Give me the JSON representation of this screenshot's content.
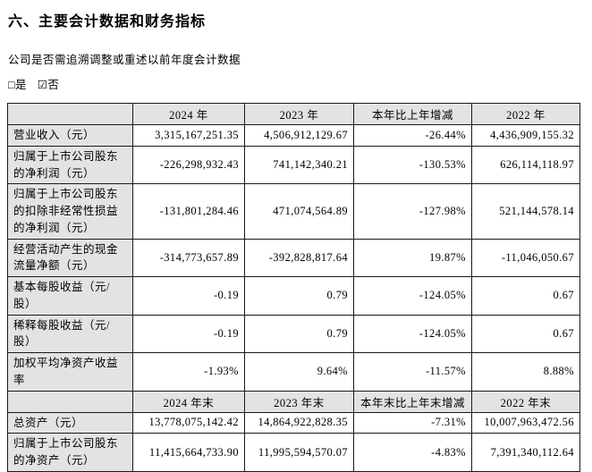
{
  "page": {
    "title": "六、主要会计数据和财务指标",
    "question": "公司是否需追溯调整或重述以前年度会计数据",
    "checkbox_yes": "□是",
    "checkbox_no": "☑否"
  },
  "colors": {
    "header_fill": "#e3e3e3",
    "border": "#1a1a1a",
    "text": "#000000",
    "background": "#ffffff"
  },
  "table": {
    "sections": [
      {
        "header": [
          "",
          "2024 年",
          "2023 年",
          "本年比上年增减",
          "2022 年"
        ],
        "rows": [
          {
            "label": "营业收入（元）",
            "values": [
              "3,315,167,251.35",
              "4,506,912,129.67",
              "-26.44%",
              "4,436,909,155.32"
            ]
          },
          {
            "label": "归属于上市公司股东的净利润（元）",
            "values": [
              "-226,298,932.43",
              "741,142,340.21",
              "-130.53%",
              "626,114,118.97"
            ]
          },
          {
            "label": "归属于上市公司股东的扣除非经常性损益的净利润（元）",
            "values": [
              "-131,801,284.46",
              "471,074,564.89",
              "-127.98%",
              "521,144,578.14"
            ]
          },
          {
            "label": "经营活动产生的现金流量净额（元）",
            "values": [
              "-314,773,657.89",
              "-392,828,817.64",
              "19.87%",
              "-11,046,050.67"
            ]
          },
          {
            "label": "基本每股收益（元/股）",
            "values": [
              "-0.19",
              "0.79",
              "-124.05%",
              "0.67"
            ]
          },
          {
            "label": "稀释每股收益（元/股）",
            "values": [
              "-0.19",
              "0.79",
              "-124.05%",
              "0.67"
            ]
          },
          {
            "label": "加权平均净资产收益率",
            "values": [
              "-1.93%",
              "9.64%",
              "-11.57%",
              "8.88%"
            ]
          }
        ]
      },
      {
        "header": [
          "",
          "2024 年末",
          "2023 年末",
          "本年末比上年末增减",
          "2022 年末"
        ],
        "rows": [
          {
            "label": "总资产（元）",
            "values": [
              "13,778,075,142.42",
              "14,864,922,828.35",
              "-7.31%",
              "10,007,963,472.56"
            ]
          },
          {
            "label": "归属于上市公司股东的净资产（元）",
            "values": [
              "11,415,664,733.90",
              "11,995,594,570.07",
              "-4.83%",
              "7,391,340,112.64"
            ]
          }
        ]
      }
    ]
  }
}
